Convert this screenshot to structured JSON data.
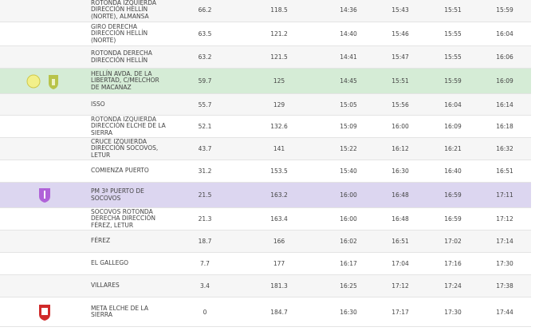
{
  "table": {
    "rows": [
      {
        "place": "ROTONDA IZQUIERDA DIRECCIÓN HELLÍN (NORTE), ALMANSA",
        "km_to_go": 66.2,
        "km_done": 118.5,
        "times": [
          "14:36",
          "15:43",
          "15:51",
          "15:59"
        ]
      },
      {
        "place": "GIRO DERECHA DIRECCIÓN HELLÍN (NORTE)",
        "km_to_go": 63.5,
        "km_done": 121.2,
        "times": [
          "14:40",
          "15:46",
          "15:55",
          "16:04"
        ]
      },
      {
        "place": "ROTONDA DERECHA DIRECCIÓN HELLÍN",
        "km_to_go": 63.2,
        "km_done": 121.5,
        "times": [
          "14:41",
          "15:47",
          "15:55",
          "16:06"
        ]
      },
      {
        "place": "HELLÍN AVDA. DE LA LIBERTAD, C/MELCHOR DE MACANAZ",
        "km_to_go": 59.7,
        "km_done": 125,
        "times": [
          "14:45",
          "15:51",
          "15:59",
          "16:09"
        ],
        "badge": "SP",
        "highlight": "#d5ecd6"
      },
      {
        "place": "ISSO",
        "km_to_go": 55.7,
        "km_done": 129,
        "times": [
          "15:05",
          "15:56",
          "16:04",
          "16:14"
        ]
      },
      {
        "place": "ROTONDA IZQUIERDA DIRECCIÓN ELCHE DE LA SIERRA",
        "km_to_go": 52.1,
        "km_done": 132.6,
        "times": [
          "15:09",
          "16:00",
          "16:09",
          "16:18"
        ]
      },
      {
        "place": "CRUCE IZQUIERDA DIRECCIÓN SOCOVOS, LETUR",
        "km_to_go": 43.7,
        "km_done": 141,
        "times": [
          "15:22",
          "16:12",
          "16:21",
          "16:32"
        ]
      },
      {
        "place": "COMIENZA PUERTO",
        "km_to_go": 31.2,
        "km_done": 153.5,
        "times": [
          "15:40",
          "16:30",
          "16:40",
          "16:51"
        ]
      },
      {
        "place": "PM 3ª PUERTO DE SOCOVOS",
        "km_to_go": 21.5,
        "km_done": 163.2,
        "times": [
          "16:00",
          "16:48",
          "16:59",
          "17:11"
        ],
        "highlight": "#dcd6f0"
      },
      {
        "place": "SOCOVOS ROTONDA DERECHA DIRECCIÓN FÉREZ, LETUR",
        "km_to_go": 21.3,
        "km_done": 163.4,
        "times": [
          "16:00",
          "16:48",
          "16:59",
          "17:12"
        ]
      },
      {
        "place": "FÉREZ",
        "km_to_go": 18.7,
        "km_done": 166,
        "times": [
          "16:02",
          "16:51",
          "17:02",
          "17:14"
        ]
      },
      {
        "place": "EL GALLEGO",
        "km_to_go": 7.7,
        "km_done": 177,
        "times": [
          "16:17",
          "17:04",
          "17:16",
          "17:30"
        ]
      },
      {
        "place": "VILLARES",
        "km_to_go": 3.4,
        "km_done": 181.3,
        "times": [
          "16:25",
          "17:12",
          "17:24",
          "17:38"
        ]
      },
      {
        "place": "META ELCHE DE LA SIERRA",
        "km_to_go": 0,
        "km_done": 184.7,
        "times": [
          "16:30",
          "17:17",
          "17:30",
          "17:44"
        ]
      }
    ]
  }
}
